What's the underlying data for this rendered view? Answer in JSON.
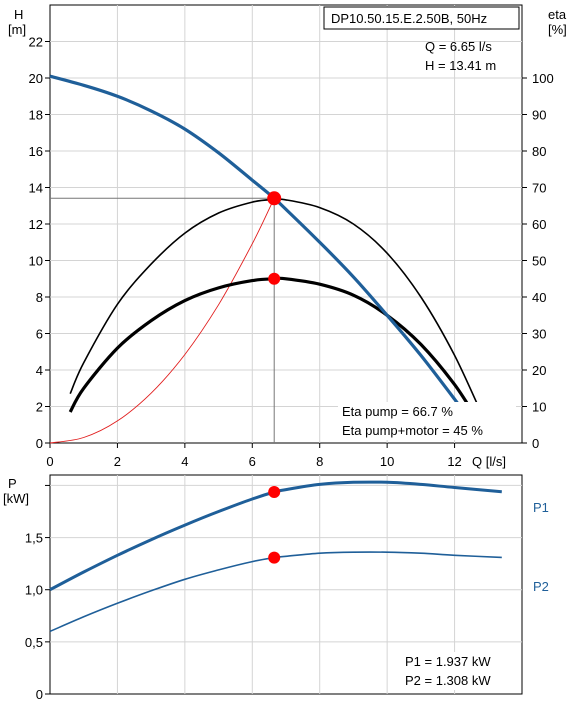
{
  "chart_data": [
    {
      "type": "line",
      "title": "DP10.50.15.E.2.50B, 50Hz",
      "x_axis": {
        "label": "Q [l/s]",
        "range": [
          0,
          14
        ],
        "ticks": [
          0,
          2,
          4,
          6,
          8,
          10,
          12
        ]
      },
      "y_left": {
        "label_1": "H",
        "label_2": "[m]",
        "range": [
          0,
          24
        ],
        "ticks": [
          0,
          2,
          4,
          6,
          8,
          10,
          12,
          14,
          16,
          18,
          20,
          22
        ]
      },
      "y_right": {
        "label_1": "eta",
        "label_2": "[%]",
        "range": [
          0,
          120
        ],
        "ticks": [
          0,
          10,
          20,
          30,
          40,
          50,
          60,
          70,
          80,
          90,
          100
        ]
      },
      "grid": true,
      "series": [
        {
          "key": "head",
          "axis": "left",
          "color": "#1f5f99",
          "x": [
            0,
            1,
            2,
            3,
            4,
            5,
            6,
            6.65,
            7,
            8,
            9,
            10,
            11,
            12,
            12.6
          ],
          "y": [
            20.1,
            19.6,
            19.0,
            18.2,
            17.2,
            15.9,
            14.4,
            13.41,
            12.8,
            11.0,
            9.1,
            7.0,
            4.8,
            2.4,
            0.9
          ]
        },
        {
          "key": "eta_pump",
          "axis": "right",
          "color": "#000000",
          "x": [
            0.6,
            1,
            2,
            3,
            4,
            5,
            6,
            6.65,
            7,
            8,
            9,
            10,
            11,
            12,
            12.9
          ],
          "y": [
            13.5,
            22,
            38,
            49,
            57.5,
            63,
            66,
            66.7,
            66.6,
            64.5,
            60,
            52,
            40,
            24,
            6
          ]
        },
        {
          "key": "eta_pump_motor",
          "axis": "right",
          "color": "#000000",
          "x": [
            0.6,
            1,
            2,
            3,
            4,
            5,
            6,
            6.65,
            7,
            8,
            9,
            10,
            11,
            12,
            12.7
          ],
          "y": [
            8.5,
            15,
            26,
            33.5,
            39,
            42.5,
            44.5,
            45,
            45,
            43.5,
            40.5,
            35,
            27,
            16,
            6
          ]
        },
        {
          "key": "system_curve",
          "axis": "left",
          "color": "#e11d1d",
          "x": [
            0,
            1,
            2,
            3,
            4,
            5,
            6,
            6.65
          ],
          "y": [
            0,
            0.3,
            1.21,
            2.73,
            4.85,
            7.58,
            10.92,
            13.41
          ]
        }
      ],
      "operating_points": [
        {
          "axis": "left",
          "x": 6.65,
          "y": 13.41
        },
        {
          "axis": "right",
          "x": 6.65,
          "y": 45
        }
      ],
      "annotations": {
        "q_readout": "Q = 6.65 l/s",
        "h_readout": "H = 13.41 m",
        "eta_pump": "Eta pump = 66.7 %",
        "eta_pump_motor": "Eta pump+motor = 45 %"
      }
    },
    {
      "type": "line",
      "y_axis": {
        "label_1": "P",
        "label_2": "[kW]",
        "range": [
          0,
          2.1
        ],
        "ticks": [
          0,
          0.5,
          1.0,
          1.5
        ],
        "tick_labels": [
          "0",
          "0,5",
          "1,0",
          "1,5"
        ]
      },
      "x_range": [
        0,
        14
      ],
      "grid": true,
      "series": [
        {
          "name": "P1",
          "color": "#1f5f99",
          "x": [
            0,
            1,
            2,
            3,
            4,
            5,
            6,
            6.65,
            7,
            8,
            9,
            10,
            11,
            12,
            13.4
          ],
          "y": [
            1.0,
            1.17,
            1.33,
            1.48,
            1.62,
            1.75,
            1.87,
            1.937,
            1.96,
            2.01,
            2.03,
            2.03,
            2.01,
            1.98,
            1.94
          ]
        },
        {
          "name": "P2",
          "color": "#1f5f99",
          "x": [
            0,
            1,
            2,
            3,
            4,
            5,
            6,
            6.65,
            7,
            8,
            9,
            10,
            11,
            12,
            13.4
          ],
          "y": [
            0.6,
            0.74,
            0.87,
            0.99,
            1.1,
            1.19,
            1.27,
            1.308,
            1.32,
            1.35,
            1.36,
            1.36,
            1.35,
            1.33,
            1.31
          ]
        }
      ],
      "operating_points": [
        {
          "x": 6.65,
          "y": 1.937
        },
        {
          "x": 6.65,
          "y": 1.308
        }
      ],
      "annotations": {
        "p1_readout": "P1 = 1.937 kW",
        "p2_readout": "P2 = 1.308 kW"
      }
    }
  ]
}
